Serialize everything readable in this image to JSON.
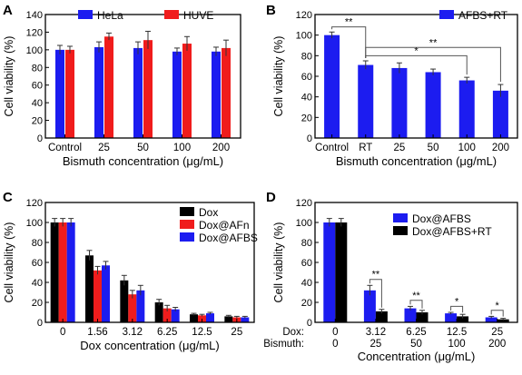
{
  "figure": {
    "colors": {
      "blue": "#1c1cf0",
      "red": "#f01c1c",
      "black": "#000000"
    }
  },
  "chart_data": [
    {
      "panel": "A",
      "type": "bar",
      "categories": [
        "Control",
        "25",
        "50",
        "100",
        "200"
      ],
      "series": [
        {
          "name": "HeLa",
          "color": "#1c1cf0",
          "values": [
            100,
            103,
            102,
            98,
            98
          ],
          "errors": [
            5,
            6,
            7,
            4,
            5
          ]
        },
        {
          "name": "HUVE",
          "color": "#f01c1c",
          "values": [
            100,
            115,
            111,
            107,
            102
          ],
          "errors": [
            4,
            4,
            10,
            8,
            9
          ]
        }
      ],
      "xlabel": "Bismuth concentration (μg/mL)",
      "ylabel": "Cell viability (%)",
      "ylim": [
        0,
        140
      ],
      "yticks": [
        0,
        20,
        40,
        60,
        80,
        100,
        120,
        140
      ],
      "legend": "top"
    },
    {
      "panel": "B",
      "type": "bar",
      "categories": [
        "Control",
        "RT",
        "25",
        "50",
        "100",
        "200"
      ],
      "series": [
        {
          "name": "AFBS+RT",
          "color": "#1c1cf0",
          "values": [
            100,
            71,
            68,
            64,
            56,
            46
          ],
          "errors": [
            3,
            4,
            5,
            3,
            3,
            6
          ]
        }
      ],
      "xlabel": "Bismuth concentration (μg/mL)",
      "ylabel": "Cell viability (%)",
      "ylim": [
        0,
        120
      ],
      "yticks": [
        0,
        20,
        40,
        60,
        80,
        100,
        120
      ],
      "legend": "top-right",
      "annotations": [
        {
          "from": 0,
          "to": 1,
          "label": "**"
        },
        {
          "from": 1,
          "to": 5,
          "label": "**"
        },
        {
          "from": 1,
          "to": 4,
          "label": "*"
        }
      ]
    },
    {
      "panel": "C",
      "type": "bar",
      "categories": [
        "0",
        "1.56",
        "3.12",
        "6.25",
        "12.5",
        "25"
      ],
      "series": [
        {
          "name": "Dox",
          "color": "#000000",
          "values": [
            100,
            67,
            42,
            20,
            8,
            6
          ],
          "errors": [
            4,
            5,
            5,
            3,
            1,
            1
          ]
        },
        {
          "name": "Dox@AFn",
          "color": "#f01c1c",
          "values": [
            100,
            52,
            28,
            14,
            7,
            5
          ],
          "errors": [
            4,
            4,
            4,
            3,
            1,
            1
          ]
        },
        {
          "name": "Dox@AFBS",
          "color": "#1c1cf0",
          "values": [
            100,
            57,
            32,
            13,
            9,
            5
          ],
          "errors": [
            4,
            4,
            5,
            2,
            1,
            1
          ]
        }
      ],
      "xlabel": "Dox concentration (μg/mL)",
      "ylabel": "Cell viability (%)",
      "ylim": [
        0,
        120
      ],
      "yticks": [
        0,
        20,
        40,
        60,
        80,
        100,
        120
      ],
      "legend": "top-right"
    },
    {
      "panel": "D",
      "type": "bar",
      "categories": [
        "0",
        "3.12",
        "6.25",
        "12.5",
        "25"
      ],
      "category_labels2": [
        "0",
        "25",
        "50",
        "100",
        "200"
      ],
      "row_labels": [
        "Dox:",
        "Bismuth:"
      ],
      "series": [
        {
          "name": "Dox@AFBS",
          "color": "#1c1cf0",
          "values": [
            100,
            32,
            14,
            9,
            5
          ],
          "errors": [
            4,
            5,
            2,
            1,
            1
          ]
        },
        {
          "name": "Dox@AFBS+RT",
          "color": "#000000",
          "values": [
            100,
            11,
            10,
            6,
            3
          ],
          "errors": [
            4,
            2,
            2,
            2,
            1
          ]
        }
      ],
      "xlabel": "Concentration (μg/mL)",
      "ylabel": "Cell viability (%)",
      "ylim": [
        0,
        120
      ],
      "yticks": [
        0,
        20,
        40,
        60,
        80,
        100,
        120
      ],
      "legend": "top-right",
      "annotations": [
        {
          "category": 1,
          "label": "**"
        },
        {
          "category": 2,
          "label": "**"
        },
        {
          "category": 3,
          "label": "*"
        },
        {
          "category": 4,
          "label": "*"
        }
      ]
    }
  ]
}
